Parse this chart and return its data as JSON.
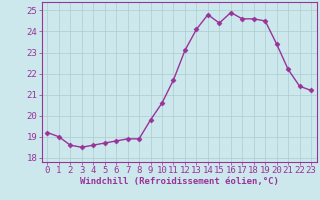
{
  "x": [
    0,
    1,
    2,
    3,
    4,
    5,
    6,
    7,
    8,
    9,
    10,
    11,
    12,
    13,
    14,
    15,
    16,
    17,
    18,
    19,
    20,
    21,
    22,
    23
  ],
  "y": [
    19.2,
    19.0,
    18.6,
    18.5,
    18.6,
    18.7,
    18.8,
    18.9,
    18.9,
    19.8,
    20.6,
    21.7,
    23.1,
    24.1,
    24.8,
    24.4,
    24.9,
    24.6,
    24.6,
    24.5,
    23.4,
    22.2,
    21.4,
    21.2
  ],
  "line_color": "#993399",
  "marker": "D",
  "marker_size": 2.5,
  "bg_color": "#cce8ec",
  "grid_color": "#aacccc",
  "xlabel": "Windchill (Refroidissement éolien,°C)",
  "ylim": [
    17.8,
    25.4
  ],
  "yticks": [
    18,
    19,
    20,
    21,
    22,
    23,
    24,
    25
  ],
  "xlim": [
    -0.5,
    23.5
  ],
  "xticks": [
    0,
    1,
    2,
    3,
    4,
    5,
    6,
    7,
    8,
    9,
    10,
    11,
    12,
    13,
    14,
    15,
    16,
    17,
    18,
    19,
    20,
    21,
    22,
    23
  ],
  "xlabel_fontsize": 6.5,
  "tick_fontsize": 6.5,
  "tick_color": "#993399",
  "axis_color": "#993399",
  "line_width": 1.0
}
